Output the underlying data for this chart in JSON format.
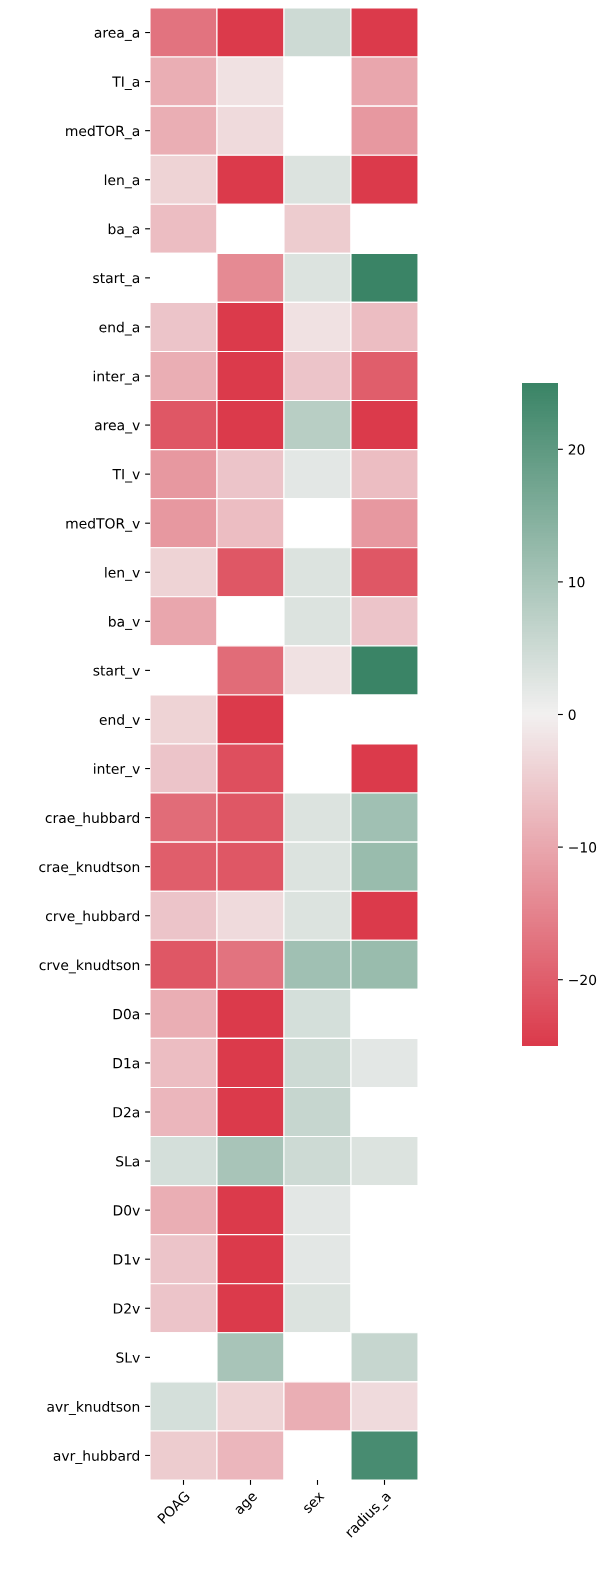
{
  "chart_data": {
    "type": "heatmap",
    "categories": [
      "POAG",
      "age",
      "sex",
      "radius_a"
    ],
    "y_categories": [
      "area_a",
      "TI_a",
      "medTOR_a",
      "len_a",
      "ba_a",
      "start_a",
      "end_a",
      "inter_a",
      "area_v",
      "TI_v",
      "medTOR_v",
      "len_v",
      "ba_v",
      "start_v",
      "end_v",
      "inter_v",
      "crae_hubbard",
      "crae_knudtson",
      "crve_hubbard",
      "crve_knudtson",
      "D0a",
      "D1a",
      "D2a",
      "SLa",
      "D0v",
      "D1v",
      "D2v",
      "SLv",
      "avr_knudtson",
      "avr_hubbard"
    ],
    "cells": [
      [
        -17,
        -25,
        5,
        -25
      ],
      [
        -9,
        -2,
        null,
        -10
      ],
      [
        -9,
        -3,
        null,
        -12
      ],
      [
        -4,
        -25,
        3,
        -25
      ],
      [
        -7,
        null,
        -5,
        null
      ],
      [
        null,
        -14,
        3,
        25
      ],
      [
        -6,
        -25,
        -2,
        -7
      ],
      [
        -9,
        -25,
        -6,
        -20
      ],
      [
        -21,
        -25,
        8,
        -25
      ],
      [
        -12,
        -6,
        2,
        -7
      ],
      [
        -12,
        -7,
        null,
        -12
      ],
      [
        -4,
        -21,
        3,
        -21
      ],
      [
        -10,
        null,
        3,
        -6
      ],
      [
        null,
        -18,
        -2,
        25
      ],
      [
        -4,
        -25,
        null,
        null
      ],
      [
        -6,
        -22,
        null,
        -25
      ],
      [
        -18,
        -21,
        3,
        11
      ],
      [
        -20,
        -21,
        3,
        12
      ],
      [
        -6,
        -3,
        3,
        -25
      ],
      [
        -21,
        -17,
        11,
        12
      ],
      [
        -9,
        -25,
        4,
        null
      ],
      [
        -7,
        -25,
        5,
        2
      ],
      [
        -8,
        -25,
        6,
        null
      ],
      [
        4,
        10,
        5,
        3
      ],
      [
        -9,
        -25,
        2,
        null
      ],
      [
        -6,
        -25,
        2,
        null
      ],
      [
        -6,
        -25,
        3,
        null
      ],
      [
        null,
        10,
        null,
        6
      ],
      [
        4,
        -4,
        -9,
        -3
      ],
      [
        -5,
        -8,
        null,
        23
      ]
    ],
    "colors": [
      "#db3a4b",
      "#f2f0f0",
      "#3a8466"
    ],
    "clim": [
      -25,
      25
    ],
    "cticks": [
      20,
      10,
      0,
      {
        "value": -10,
        "label": "−10"
      },
      {
        "value": -20,
        "label": "−20"
      }
    ]
  }
}
